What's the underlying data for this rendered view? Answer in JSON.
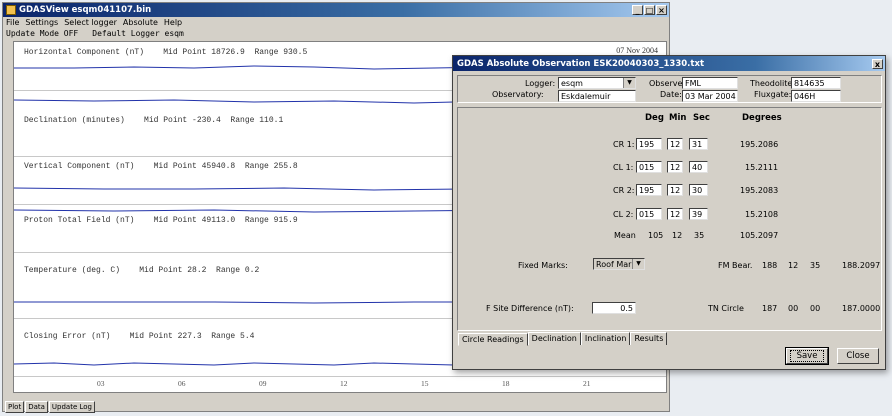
{
  "main": {
    "title": "GDASView esqm041107.bin",
    "menu": [
      "File",
      "Settings",
      "Select logger",
      "Absolute",
      "Help"
    ],
    "status": {
      "update_mode": "Update Mode OFF",
      "default_logger": "Default Logger esqm"
    },
    "date": "07 Nov 2004",
    "panels": [
      {
        "label": "Horizontal Component (nT)    Mid Point 18726.9  Range 930.5"
      },
      {
        "label": "Declination (minutes)    Mid Point -230.4  Range 110.1"
      },
      {
        "label": "Vertical Component (nT)    Mid Point 45940.8  Range 255.8"
      },
      {
        "label": "Proton Total Field (nT)    Mid Point 49113.0  Range 915.9"
      },
      {
        "label": "Temperature (deg. C)    Mid Point 28.2  Range 0.2"
      },
      {
        "label": "Closing Error (nT)    Mid Point 227.3  Range 5.4"
      }
    ],
    "xticks": [
      "03",
      "06",
      "09",
      "12",
      "15",
      "18",
      "21"
    ],
    "bottom_tabs": [
      "Plot",
      "Data",
      "Update Log"
    ]
  },
  "dialog": {
    "title": "GDAS Absolute Observation ESK20040303_1330.txt",
    "close_glyph": "x",
    "logger_label": "Logger:",
    "logger_value": "esqm",
    "observatory_label": "Observatory:",
    "observatory_value": "Eskdalemuir",
    "observer_label": "Observer:",
    "observer_value": "FML",
    "date_label": "Date:",
    "date_value": "03 Mar 2004",
    "theodolite_label": "Theodolite:",
    "theodolite_value": "814635",
    "fluxgate_label": "Fluxgate:",
    "fluxgate_value": "046H",
    "headers": {
      "deg": "Deg",
      "min": "Min",
      "sec": "Sec",
      "degrees": "Degrees"
    },
    "readings": [
      {
        "label": "CR 1:",
        "deg": "195",
        "min": "12",
        "sec": "31",
        "degrees": "195.2086"
      },
      {
        "label": "CL 1:",
        "deg": "015",
        "min": "12",
        "sec": "40",
        "degrees": "15.2111"
      },
      {
        "label": "CR 2:",
        "deg": "195",
        "min": "12",
        "sec": "30",
        "degrees": "195.2083"
      },
      {
        "label": "CL 2:",
        "deg": "015",
        "min": "12",
        "sec": "39",
        "degrees": "15.2108"
      }
    ],
    "mean": {
      "label": "Mean",
      "deg": "105",
      "min": "12",
      "sec": "35",
      "degrees": "105.2097"
    },
    "fixed_marks_label": "Fixed Marks:",
    "fixed_marks_value": "Roof Mark",
    "fm_bear": {
      "label": "FM Bear.",
      "deg": "188",
      "min": "12",
      "sec": "35",
      "degrees": "188.2097"
    },
    "f_site_label": "F Site Difference (nT):",
    "f_site_value": "0.5",
    "tn_circle": {
      "label": "TN Circle",
      "deg": "187",
      "min": "00",
      "sec": "00",
      "degrees": "187.0000"
    },
    "tabs": [
      "Circle Readings",
      "Declination",
      "Inclination",
      "Results"
    ],
    "save_label": "Save",
    "close_label": "Close"
  },
  "colors": {
    "title_blue": "#0a246a",
    "trace": "#2233aa",
    "chrome": "#d4d0c8"
  }
}
